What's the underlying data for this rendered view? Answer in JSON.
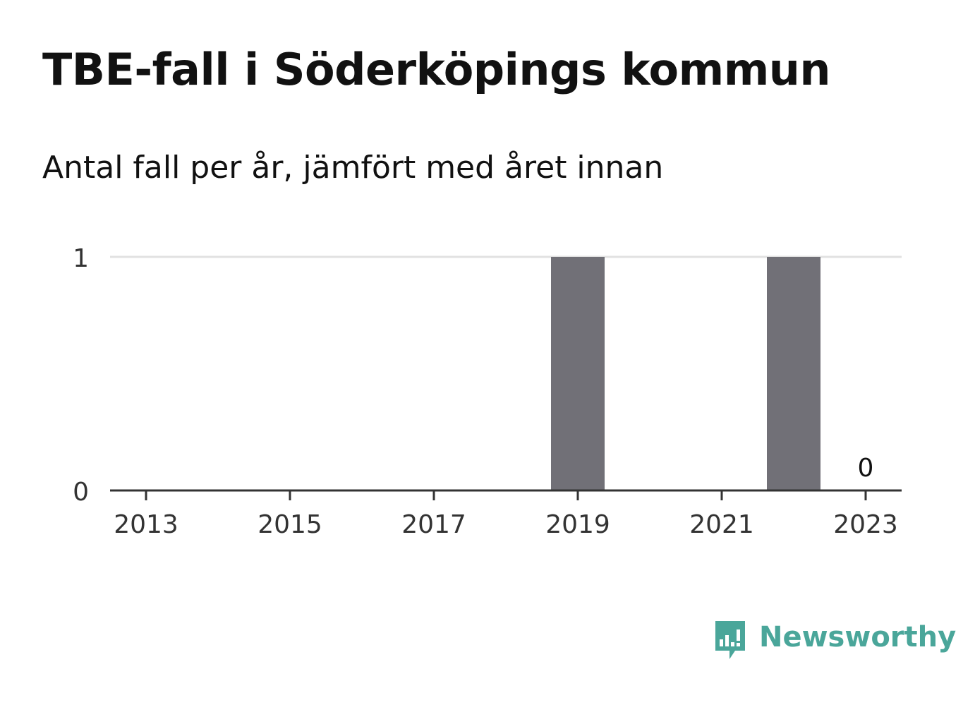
{
  "header": {
    "title": "TBE-fall i Söderköpings kommun",
    "subtitle": "Antal fall per år, jämfört med året innan"
  },
  "chart_data": {
    "type": "bar",
    "categories": [
      "2013",
      "2014",
      "2015",
      "2016",
      "2017",
      "2018",
      "2019",
      "2020",
      "2021",
      "2022",
      "2023"
    ],
    "x_tick_labels": [
      "2013",
      "2015",
      "2017",
      "2019",
      "2021",
      "2023"
    ],
    "values": [
      0,
      0,
      0,
      0,
      0,
      0,
      1,
      0,
      0,
      1,
      0
    ],
    "y_ticks": [
      "0",
      "1"
    ],
    "ylim": [
      0,
      1
    ],
    "grid": true,
    "annotations": [
      {
        "category": "2023",
        "text": "0"
      }
    ],
    "colors": {
      "bar": "#717077",
      "grid": "#e1e1e1",
      "axis": "#333333",
      "tick_text": "#333333"
    }
  },
  "brand": {
    "name": "Newsworthy",
    "icon": "newsworthy-logo-icon",
    "color": "#4aa69a"
  }
}
